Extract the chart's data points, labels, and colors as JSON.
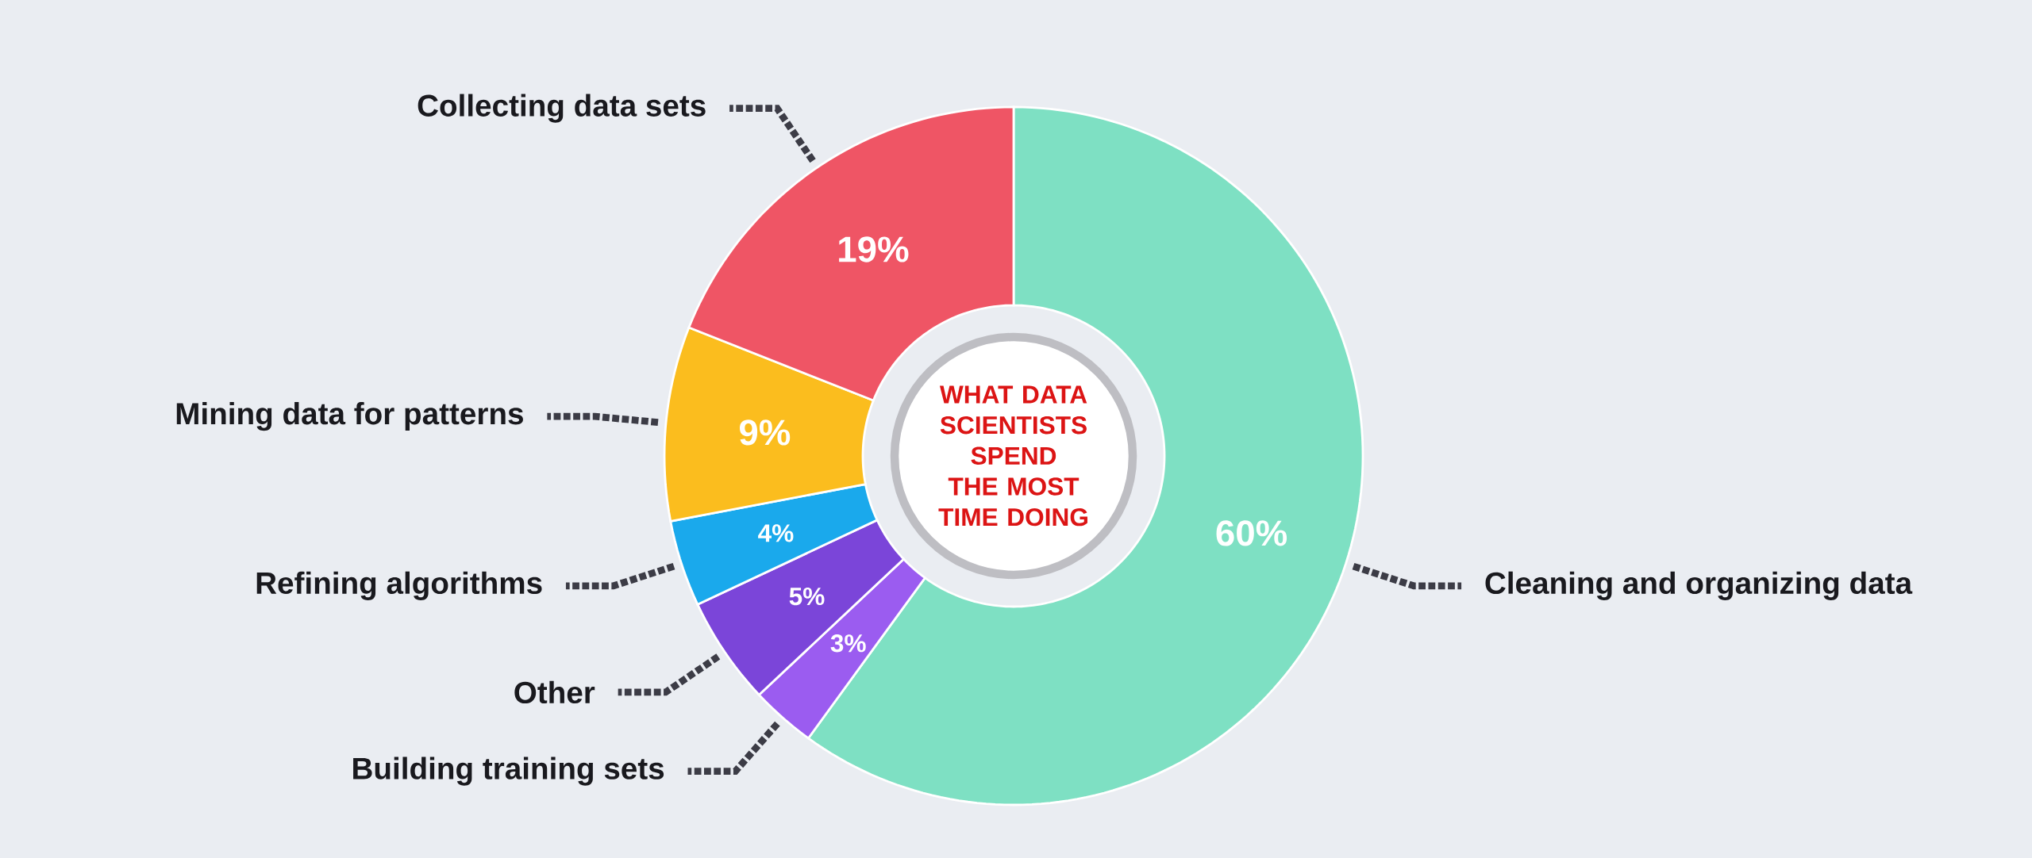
{
  "chart_data": {
    "type": "donut",
    "title": "WHAT DATA SCIENTISTS SPEND THE MOST TIME DOING",
    "categories": [
      "Cleaning and organizing data",
      "Building training sets",
      "Other",
      "Refining algorithms",
      "Mining data for patterns",
      "Collecting data sets"
    ],
    "values": [
      60,
      3,
      5,
      4,
      9,
      19
    ],
    "value_labels": [
      "60%",
      "3%",
      "5%",
      "4%",
      "9%",
      "19%"
    ],
    "colors": [
      "#7ee0c3",
      "#9b5cf0",
      "#7b45d9",
      "#1aa9ec",
      "#fbbd1e",
      "#ef5565"
    ]
  }
}
